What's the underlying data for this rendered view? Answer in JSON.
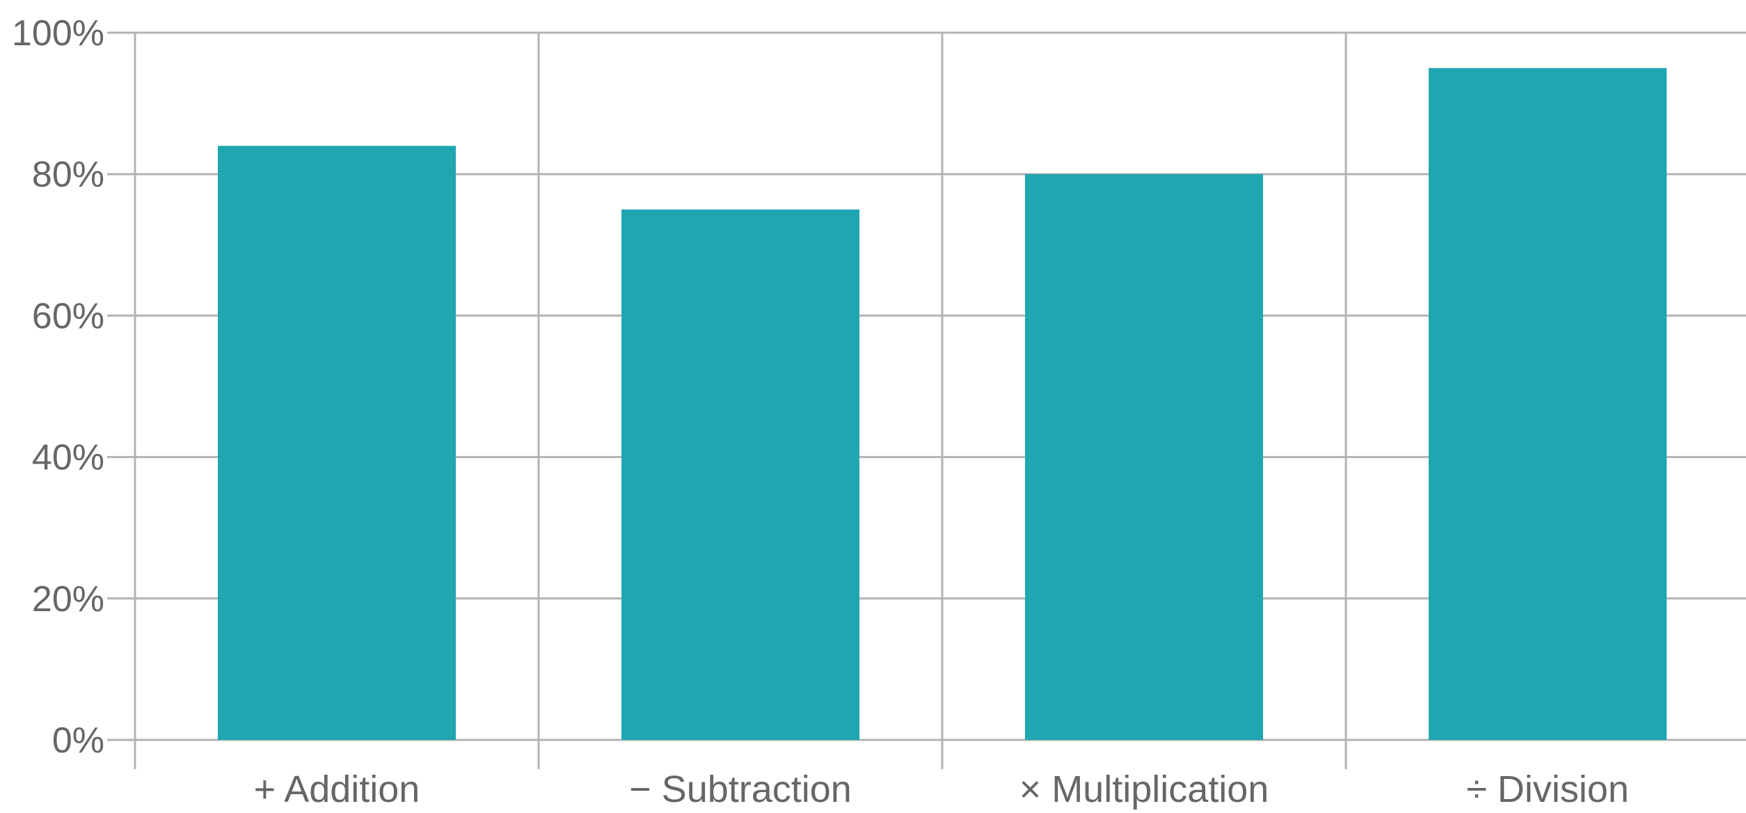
{
  "chart_data": {
    "type": "bar",
    "categories": [
      "+ Addition",
      "− Subtraction",
      "× Multiplication",
      "÷ Division"
    ],
    "values": [
      84,
      75,
      80,
      95
    ],
    "ylim": [
      0,
      100
    ],
    "yticks": [
      0,
      20,
      40,
      60,
      80,
      100
    ],
    "ytick_labels": [
      "0%",
      "20%",
      "40%",
      "60%",
      "80%",
      "100%"
    ],
    "title": "",
    "xlabel": "",
    "ylabel": "",
    "grid": true,
    "legend": "none",
    "bar_color": "#1fa6b0",
    "grid_color": "#b3b3b3",
    "text_color": "#666666"
  }
}
